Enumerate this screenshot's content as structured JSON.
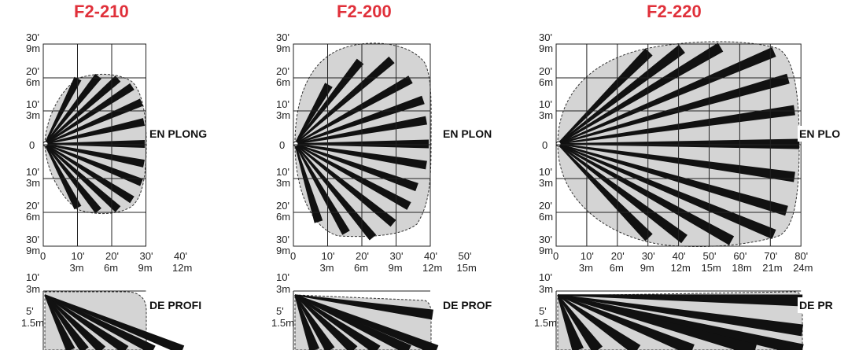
{
  "panels": [
    {
      "title": "F2-210",
      "y_labels": [
        [
          "30'",
          "9m"
        ],
        [
          "20'",
          "6m"
        ],
        [
          "10'",
          "3m"
        ],
        [
          "0"
        ],
        [
          "10'",
          "3m"
        ],
        [
          "20'",
          "6m"
        ],
        [
          "30'",
          "9m"
        ]
      ],
      "x_labels": [
        [
          "0"
        ],
        [
          "10'",
          "3m"
        ],
        [
          "20'",
          "6m"
        ],
        [
          "30'",
          "9m"
        ],
        [
          "40'",
          "12m"
        ]
      ],
      "top_label": "EN PLONG",
      "side_y_labels": [
        [
          "10'",
          "3m"
        ],
        [
          "5'",
          "1.5m"
        ]
      ],
      "side_label": "DE PROFI"
    },
    {
      "title": "F2-200",
      "y_labels": [
        [
          "30'",
          "9m"
        ],
        [
          "20'",
          "6m"
        ],
        [
          "10'",
          "3m"
        ],
        [
          "0"
        ],
        [
          "10'",
          "3m"
        ],
        [
          "20'",
          "6m"
        ],
        [
          "30'",
          "9m"
        ]
      ],
      "x_labels": [
        [
          "0"
        ],
        [
          "10'",
          "3m"
        ],
        [
          "20'",
          "6m"
        ],
        [
          "30'",
          "9m"
        ],
        [
          "40'",
          "12m"
        ],
        [
          "50'",
          "15m"
        ]
      ],
      "top_label": "EN PLON",
      "side_y_labels": [
        [
          "10'",
          "3m"
        ],
        [
          "5'",
          "1.5m"
        ]
      ],
      "side_label": "DE PROF"
    },
    {
      "title": "F2-220",
      "y_labels": [
        [
          "30'",
          "9m"
        ],
        [
          "20'",
          "6m"
        ],
        [
          "10'",
          "3m"
        ],
        [
          "0"
        ],
        [
          "10'",
          "3m"
        ],
        [
          "20'",
          "6m"
        ],
        [
          "30'",
          "9m"
        ]
      ],
      "x_labels": [
        [
          "0"
        ],
        [
          "10'",
          "3m"
        ],
        [
          "20'",
          "6m"
        ],
        [
          "30'",
          "9m"
        ],
        [
          "40'",
          "12m"
        ],
        [
          "50'",
          "15m"
        ],
        [
          "60'",
          "18m"
        ],
        [
          "70'",
          "21m"
        ],
        [
          "80'",
          "24m"
        ]
      ],
      "top_label": "EN PLO",
      "side_y_labels": [
        [
          "10'",
          "3m"
        ],
        [
          "5'",
          "1.5m"
        ]
      ],
      "side_label": "DE PR"
    }
  ],
  "colors": {
    "title": "#e0303a",
    "zone_fill": "#d4d4d4",
    "beam": "#111111",
    "grid": "#222222"
  }
}
